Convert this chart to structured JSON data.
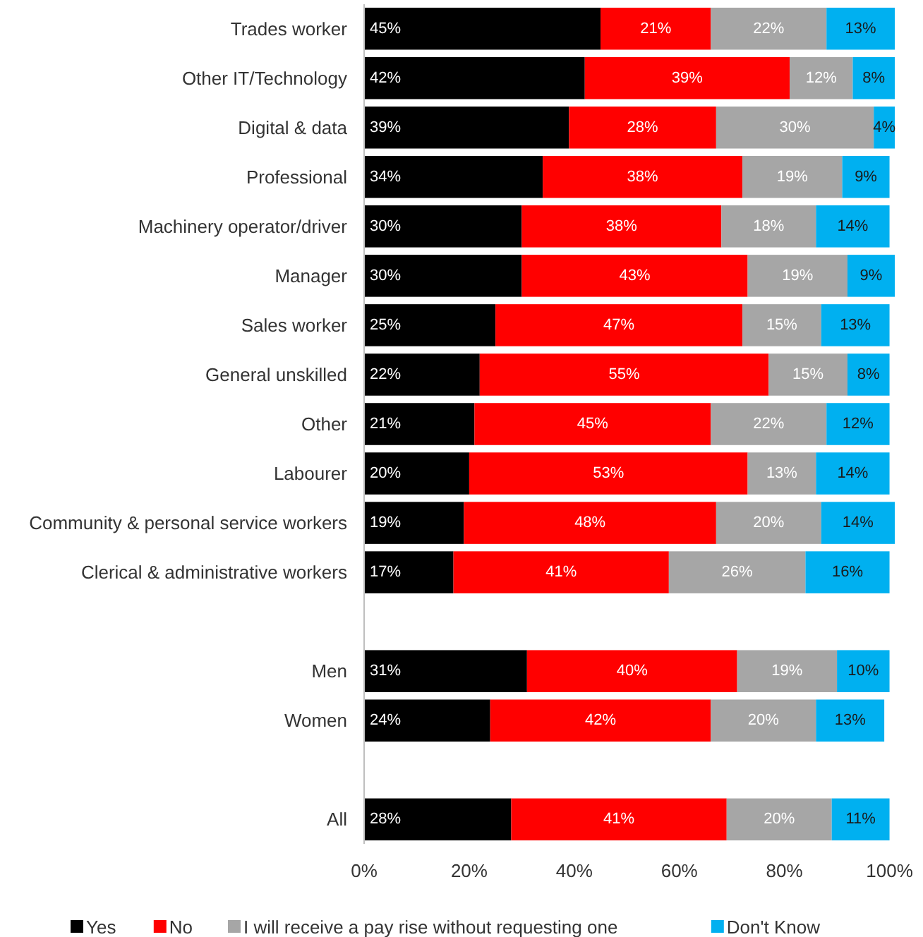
{
  "chart_data": {
    "type": "bar",
    "orientation": "horizontal",
    "stacked": true,
    "categories": [
      "Trades worker",
      "Other IT/Technology",
      "Digital & data",
      "Professional",
      "Machinery operator/driver",
      "Manager",
      "Sales worker",
      "General unskilled",
      "Other",
      "Labourer",
      "Community & personal service workers",
      "Clerical & administrative workers",
      null,
      "Men",
      "Women",
      null,
      "All"
    ],
    "series": [
      {
        "name": "Yes",
        "color": "#000000",
        "values": [
          45,
          42,
          39,
          34,
          30,
          30,
          25,
          22,
          21,
          20,
          19,
          17,
          null,
          31,
          24,
          null,
          28
        ],
        "value_labels": [
          "45%",
          "42%",
          "39%",
          "34%",
          "30%",
          "30%",
          "25%",
          "22%",
          "21%",
          "20%",
          "19%",
          "17%",
          null,
          "31%",
          "24%",
          null,
          "28%"
        ]
      },
      {
        "name": "No",
        "color": "#ff0000",
        "values": [
          21,
          39,
          28,
          38,
          38,
          43,
          47,
          55,
          45,
          53,
          48,
          41,
          null,
          40,
          42,
          null,
          41
        ],
        "value_labels": [
          "21%",
          "39%",
          "28%",
          "38%",
          "38%",
          "43%",
          "47%",
          "55%",
          "45%",
          "53%",
          "48%",
          "41%",
          null,
          "40%",
          "42%",
          null,
          "41%"
        ]
      },
      {
        "name": "I will receive a pay rise without requesting one",
        "color": "#a6a6a6",
        "values": [
          22,
          12,
          30,
          19,
          18,
          19,
          15,
          15,
          22,
          13,
          20,
          26,
          null,
          19,
          20,
          null,
          20
        ],
        "value_labels": [
          "22%",
          "12%",
          "30%",
          "19%",
          "18%",
          "19%",
          "15%",
          "15%",
          "22%",
          "13%",
          "20%",
          "26%",
          null,
          "19%",
          "20%",
          null,
          "20%"
        ]
      },
      {
        "name": "Don't Know",
        "color": "#00b0f0",
        "values": [
          13,
          8,
          4,
          9,
          14,
          9,
          13,
          8,
          12,
          14,
          14,
          16,
          null,
          10,
          13,
          null,
          11
        ],
        "value_labels": [
          "13%",
          "8%",
          "4%",
          "9%",
          "14%",
          "9%",
          "13%",
          "8%",
          "12%",
          "14%",
          "14%",
          "16%",
          null,
          "10%",
          "13%",
          null,
          "11%"
        ]
      }
    ],
    "xlim": [
      0,
      101
    ],
    "xticks": [
      {
        "value": 0,
        "label": "0%"
      },
      {
        "value": 20,
        "label": "20%"
      },
      {
        "value": 40,
        "label": "40%"
      },
      {
        "value": 60,
        "label": "60%"
      },
      {
        "value": 80,
        "label": "80%"
      },
      {
        "value": 100,
        "label": "100%"
      }
    ],
    "legend": "bottom"
  }
}
